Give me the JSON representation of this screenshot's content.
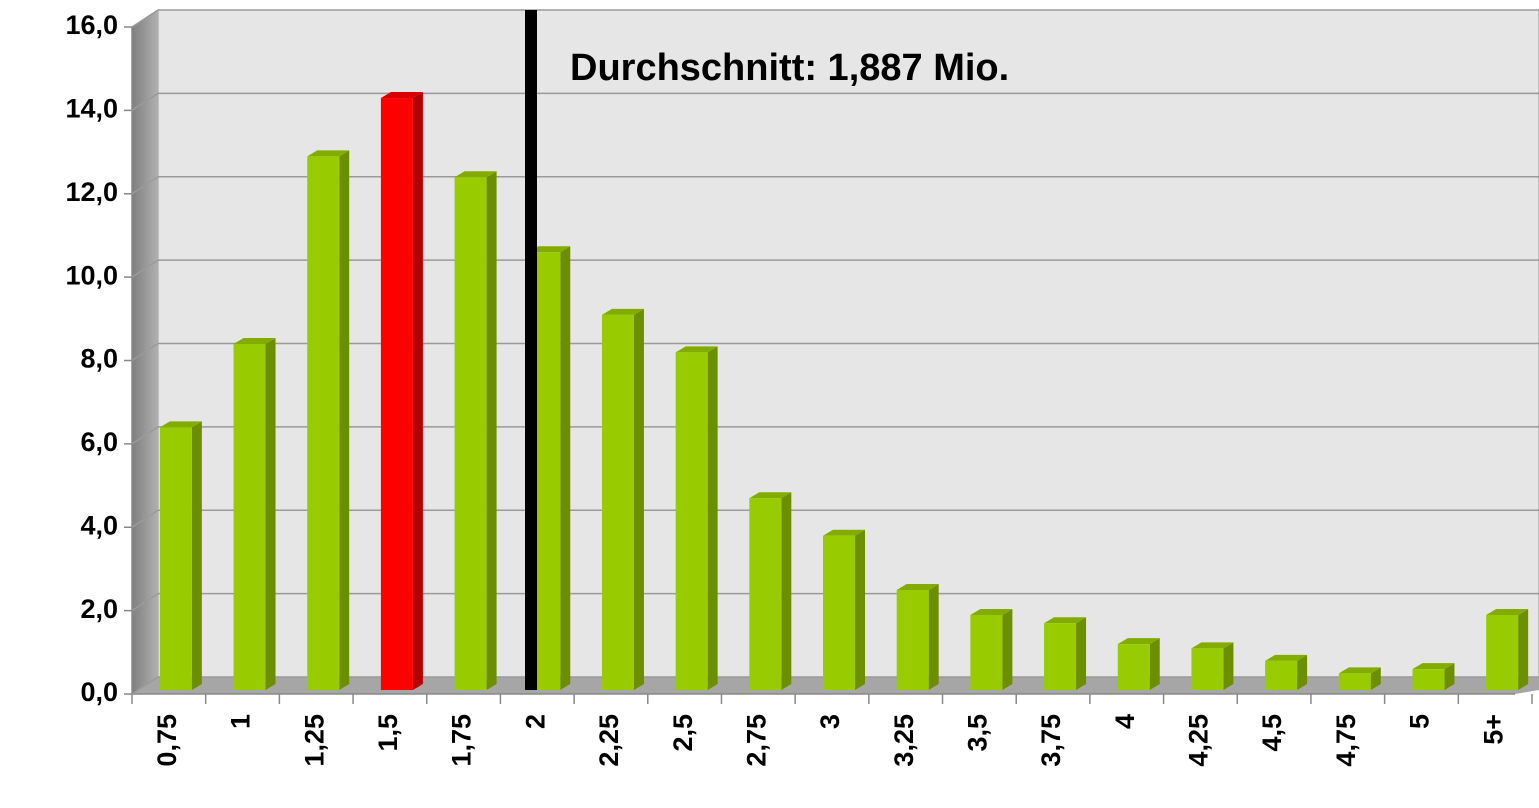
{
  "chart_data": {
    "type": "bar3d",
    "annotation": "Durchschnitt: 1,887 Mio.",
    "categories": [
      "0,75",
      "1",
      "1,25",
      "1,5",
      "1,75",
      "2",
      "2,25",
      "2,5",
      "2,75",
      "3",
      "3,25",
      "3,5",
      "3,75",
      "4",
      "4,25",
      "4,5",
      "4,75",
      "5",
      "5+"
    ],
    "values": [
      6.3,
      8.3,
      12.8,
      14.2,
      12.3,
      10.5,
      9.0,
      8.1,
      4.6,
      3.7,
      2.4,
      1.8,
      1.6,
      1.1,
      1.0,
      0.7,
      0.4,
      0.5,
      1.8
    ],
    "colors": [
      "#99cc00",
      "#99cc00",
      "#99cc00",
      "#ff0000",
      "#99cc00",
      "#99cc00",
      "#99cc00",
      "#99cc00",
      "#99cc00",
      "#99cc00",
      "#99cc00",
      "#99cc00",
      "#99cc00",
      "#99cc00",
      "#99cc00",
      "#99cc00",
      "#99cc00",
      "#99cc00",
      "#99cc00"
    ],
    "ylim": [
      0,
      16
    ],
    "yticks": [
      {
        "value": 0,
        "label": "0,0"
      },
      {
        "value": 2,
        "label": "2,0"
      },
      {
        "value": 4,
        "label": "4,0"
      },
      {
        "value": 6,
        "label": "6,0"
      },
      {
        "value": 8,
        "label": "8,0"
      },
      {
        "value": 10,
        "label": "10,0"
      },
      {
        "value": 12,
        "label": "12,0"
      },
      {
        "value": 14,
        "label": "14,0"
      },
      {
        "value": 16,
        "label": "16,0"
      }
    ],
    "grid": true
  }
}
